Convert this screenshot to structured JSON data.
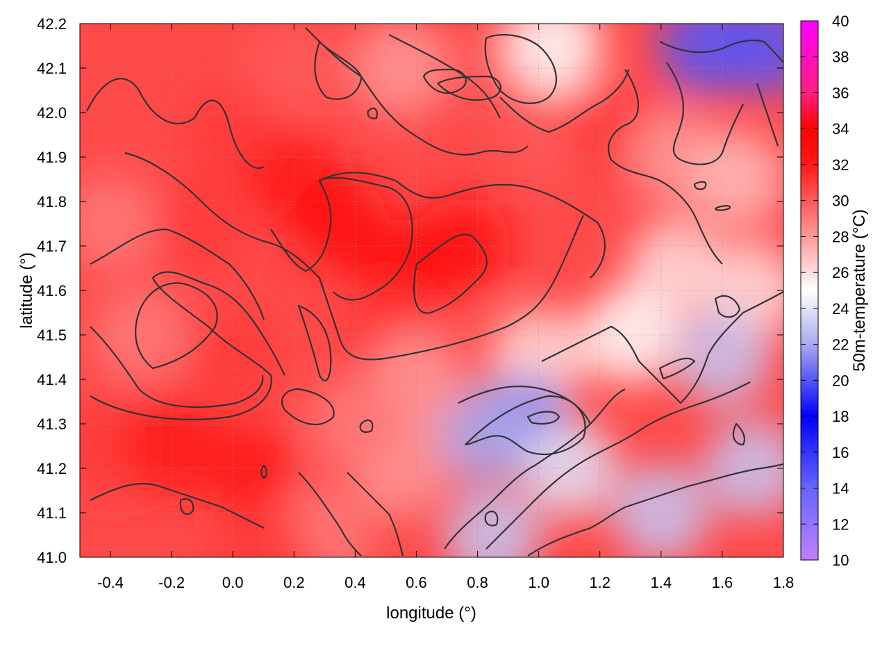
{
  "chart_data": {
    "type": "heatmap",
    "subtype": "filled contour map of 50 m air temperature with black contour isolines",
    "title": "",
    "xlabel": "longitude (°)",
    "ylabel": "latitude (°)",
    "colorbar_label": "50m-temperature (°C)",
    "xlim": [
      -0.5,
      1.8
    ],
    "ylim": [
      41.0,
      42.2
    ],
    "colorbar_range": [
      10,
      40
    ],
    "grid": true,
    "x_ticks": [
      "-0.4",
      "-0.2",
      "0.0",
      "0.2",
      "0.4",
      "0.6",
      "0.8",
      "1.0",
      "1.2",
      "1.4",
      "1.6",
      "1.8"
    ],
    "y_ticks": [
      "41.0",
      "41.1",
      "41.2",
      "41.3",
      "41.4",
      "41.5",
      "41.6",
      "41.7",
      "41.8",
      "41.9",
      "42.0",
      "42.1",
      "42.2"
    ],
    "colorbar_ticks": [
      "10",
      "12",
      "14",
      "16",
      "18",
      "20",
      "22",
      "24",
      "26",
      "28",
      "30",
      "32",
      "34",
      "36",
      "38",
      "40"
    ],
    "colormap": [
      {
        "value": 10,
        "color": "#c080ff"
      },
      {
        "value": 14,
        "color": "#6666ff"
      },
      {
        "value": 18,
        "color": "#0000ff"
      },
      {
        "value": 22,
        "color": "#aaaaf0"
      },
      {
        "value": 25,
        "color": "#ffffff"
      },
      {
        "value": 28,
        "color": "#ff9999"
      },
      {
        "value": 32,
        "color": "#ff1a1a"
      },
      {
        "value": 34,
        "color": "#ff0000"
      },
      {
        "value": 36,
        "color": "#ff2080"
      },
      {
        "value": 40,
        "color": "#ff00ff"
      }
    ],
    "contour_color": "#333333",
    "temperature_samples": [
      {
        "lon": -0.4,
        "lat": 41.25,
        "t": 31
      },
      {
        "lon": -0.2,
        "lat": 41.25,
        "t": 32
      },
      {
        "lon": 0.05,
        "lat": 41.2,
        "t": 32
      },
      {
        "lon": 0.0,
        "lat": 41.45,
        "t": 31
      },
      {
        "lon": -0.3,
        "lat": 41.5,
        "t": 29
      },
      {
        "lon": -0.4,
        "lat": 41.75,
        "t": 29
      },
      {
        "lon": -0.1,
        "lat": 41.75,
        "t": 31
      },
      {
        "lon": 0.0,
        "lat": 41.95,
        "t": 31
      },
      {
        "lon": 0.2,
        "lat": 41.85,
        "t": 32
      },
      {
        "lon": 0.35,
        "lat": 41.75,
        "t": 33
      },
      {
        "lon": 0.55,
        "lat": 41.65,
        "t": 33
      },
      {
        "lon": 0.75,
        "lat": 41.7,
        "t": 33
      },
      {
        "lon": 0.5,
        "lat": 41.5,
        "t": 31
      },
      {
        "lon": 0.2,
        "lat": 42.1,
        "t": 30
      },
      {
        "lon": 0.55,
        "lat": 42.1,
        "t": 28
      },
      {
        "lon": 0.9,
        "lat": 42.1,
        "t": 30
      },
      {
        "lon": 1.05,
        "lat": 41.95,
        "t": 30
      },
      {
        "lon": 1.25,
        "lat": 41.95,
        "t": 31
      },
      {
        "lon": 1.55,
        "lat": 42.15,
        "t": 20
      },
      {
        "lon": 1.75,
        "lat": 42.15,
        "t": 20
      },
      {
        "lon": 1.05,
        "lat": 42.15,
        "t": 25
      },
      {
        "lon": 1.45,
        "lat": 41.9,
        "t": 28
      },
      {
        "lon": 1.65,
        "lat": 41.85,
        "t": 27
      },
      {
        "lon": 1.45,
        "lat": 41.65,
        "t": 26
      },
      {
        "lon": 1.7,
        "lat": 41.6,
        "t": 26
      },
      {
        "lon": 1.3,
        "lat": 41.5,
        "t": 25
      },
      {
        "lon": 1.6,
        "lat": 41.45,
        "t": 23
      },
      {
        "lon": 1.0,
        "lat": 41.45,
        "t": 26
      },
      {
        "lon": 0.95,
        "lat": 41.3,
        "t": 21
      },
      {
        "lon": 0.8,
        "lat": 41.28,
        "t": 22
      },
      {
        "lon": 1.1,
        "lat": 41.2,
        "t": 24
      },
      {
        "lon": 1.4,
        "lat": 41.1,
        "t": 23
      },
      {
        "lon": 1.7,
        "lat": 41.2,
        "t": 23
      },
      {
        "lon": 0.85,
        "lat": 41.05,
        "t": 23
      },
      {
        "lon": 0.55,
        "lat": 41.2,
        "t": 28
      },
      {
        "lon": 0.6,
        "lat": 41.4,
        "t": 28
      },
      {
        "lon": 0.3,
        "lat": 41.05,
        "t": 29
      },
      {
        "lon": 0.1,
        "lat": 41.0,
        "t": 31
      },
      {
        "lon": 0.4,
        "lat": 41.3,
        "t": 29
      }
    ]
  }
}
